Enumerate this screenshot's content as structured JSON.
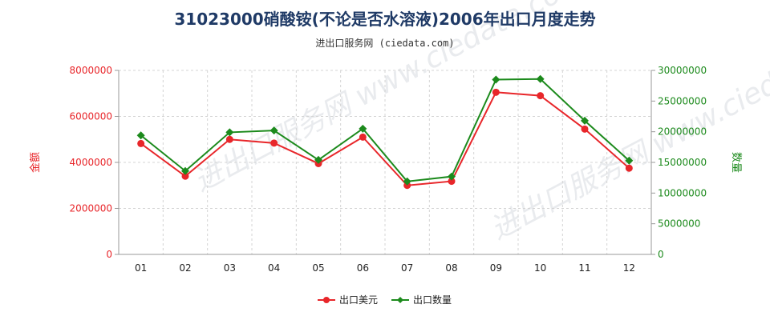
{
  "chart_data": {
    "type": "line",
    "title": "31023000硝酸铵(不论是否水溶液)2006年出口月度走势",
    "subtitle": "进出口服务网 (ciedata.com)",
    "watermark": "进出口服务网 www.ciedata.com",
    "categories": [
      "01",
      "02",
      "03",
      "04",
      "05",
      "06",
      "07",
      "08",
      "09",
      "10",
      "11",
      "12"
    ],
    "y_left": {
      "label": "金额",
      "range": [
        0,
        8000000
      ],
      "ticks": [
        "0",
        "2000000",
        "4000000",
        "6000000",
        "8000000"
      ]
    },
    "y_right": {
      "label": "数量",
      "range": [
        0,
        30000000
      ],
      "ticks": [
        "0",
        "5000000",
        "10000000",
        "15000000",
        "20000000",
        "25000000",
        "30000000"
      ]
    },
    "grid": true,
    "legend_position": "bottom",
    "series": [
      {
        "name": "出口美元",
        "axis": "left",
        "color": "#e8262a",
        "values": [
          4820000,
          3400000,
          5000000,
          4840000,
          3950000,
          5100000,
          3000000,
          3180000,
          7050000,
          6900000,
          5450000,
          3750000
        ]
      },
      {
        "name": "出口数量",
        "axis": "right",
        "color": "#1c8a1c",
        "values": [
          19400000,
          13600000,
          19900000,
          20200000,
          15400000,
          20500000,
          11900000,
          12700000,
          28500000,
          28600000,
          21800000,
          15300000
        ]
      }
    ]
  }
}
